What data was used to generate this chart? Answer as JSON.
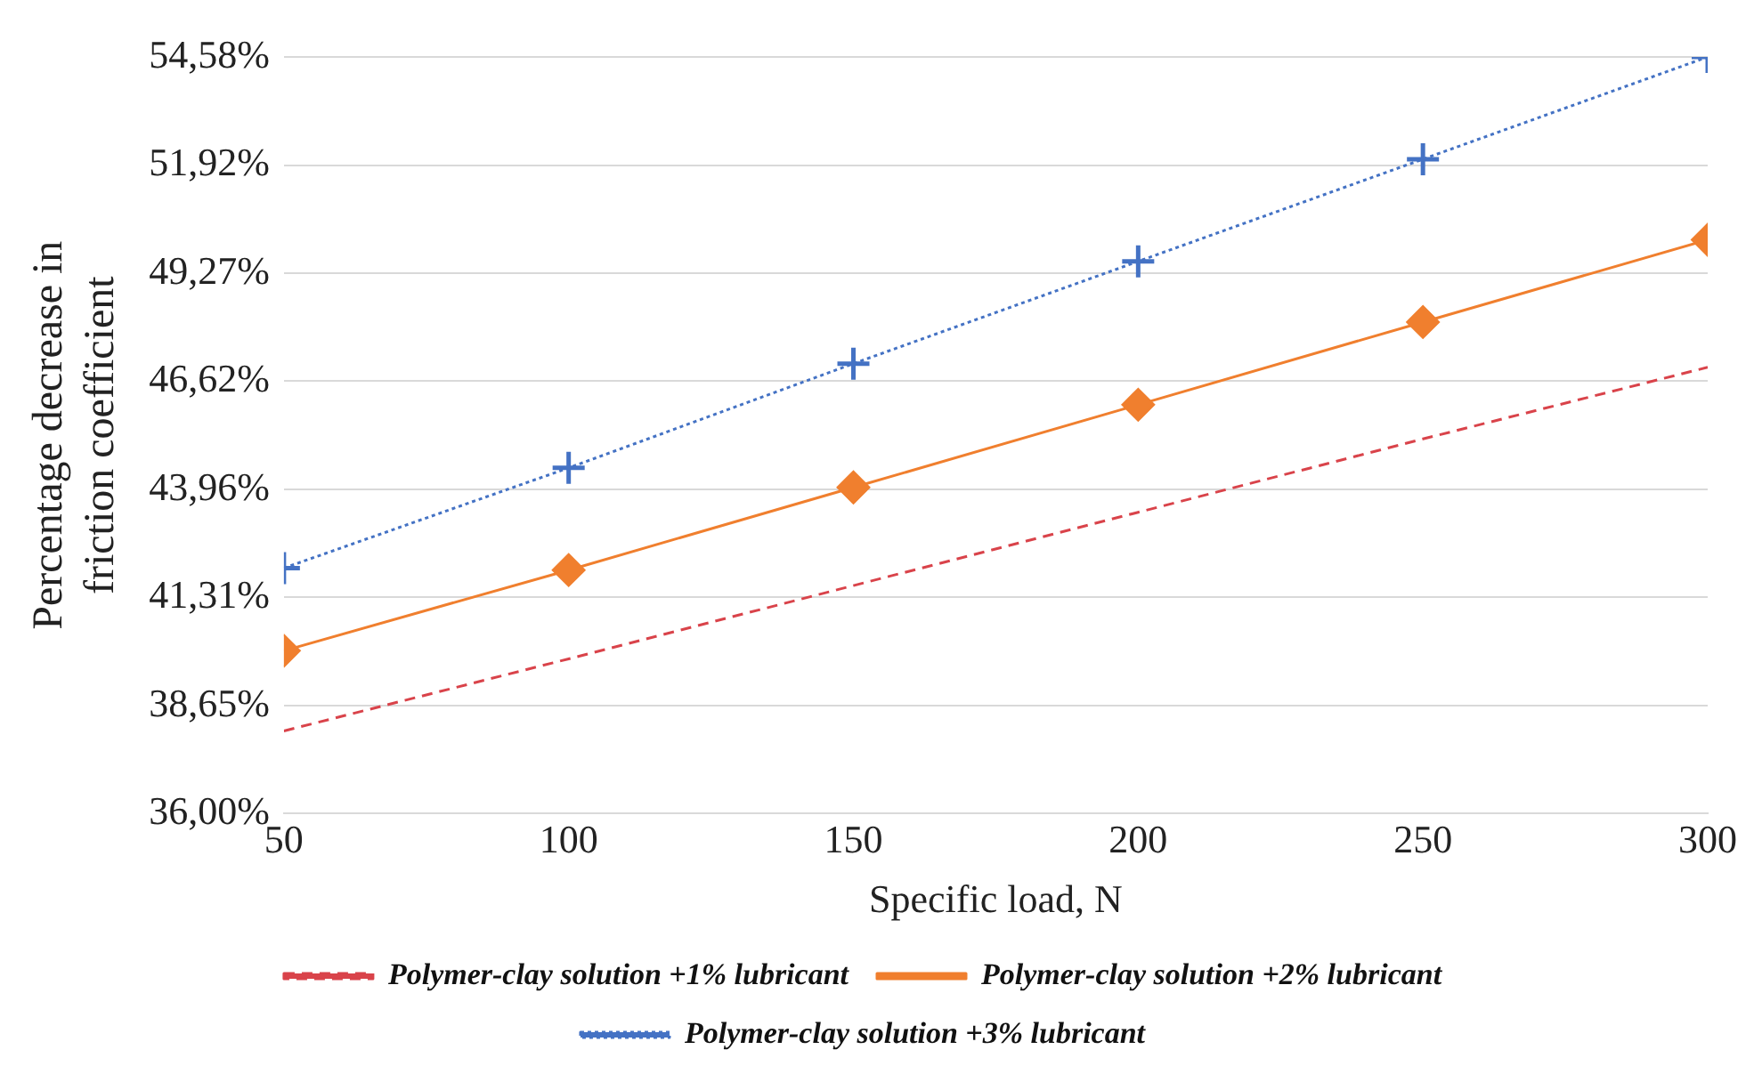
{
  "chart_data": {
    "type": "line",
    "xlabel": "Specific load, N",
    "ylabel": "Percentage decrease in friction coefficient",
    "x": [
      50,
      100,
      150,
      200,
      250,
      300
    ],
    "xlim": [
      50,
      300
    ],
    "xticks": [
      50,
      100,
      150,
      200,
      250,
      300
    ],
    "ylim": [
      36,
      54.58
    ],
    "yticks": [
      {
        "value": 36,
        "label": "36,00%"
      },
      {
        "value": 38.65,
        "label": "38,65%"
      },
      {
        "value": 41.31,
        "label": "41,31%"
      },
      {
        "value": 43.96,
        "label": "43,96%"
      },
      {
        "value": 46.62,
        "label": "46,62%"
      },
      {
        "value": 49.27,
        "label": "49,27%"
      },
      {
        "value": 51.92,
        "label": "51,92%"
      },
      {
        "value": 54.58,
        "label": "54,58%"
      }
    ],
    "grid": "y",
    "legend": "bottom",
    "series": [
      {
        "name": "Polymer-clay solution +1% lubricant",
        "color": "#d9434a",
        "values": [
          38.03,
          39.8,
          41.6,
          43.4,
          45.2,
          46.96
        ],
        "marker": "none",
        "line_style": "dashed"
      },
      {
        "name": "Polymer-clay solution +2% lubricant",
        "color": "#f07f2e",
        "values": [
          40.0,
          41.98,
          44.01,
          46.04,
          48.07,
          50.09
        ],
        "marker": "diamond",
        "line_style": "solid"
      },
      {
        "name": "Polymer-clay solution +3% lubricant",
        "color": "#4472c4",
        "values": [
          42.03,
          44.49,
          47.05,
          49.56,
          52.07,
          54.58
        ],
        "marker": "cross",
        "line_style": "dotted"
      }
    ]
  }
}
